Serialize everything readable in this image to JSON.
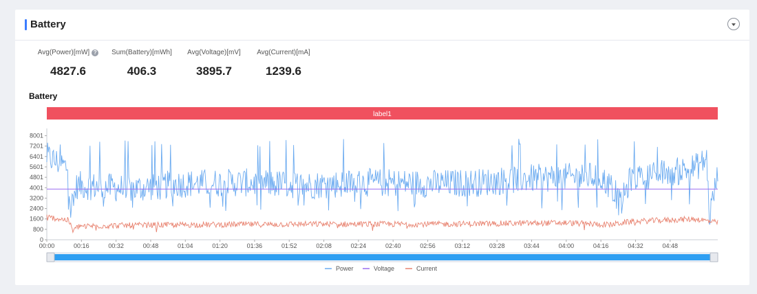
{
  "card": {
    "title": "Battery"
  },
  "metrics": [
    {
      "label": "Avg(Power)[mW]",
      "value": "4827.6",
      "has_help": true
    },
    {
      "label": "Sum(Battery)[mWh]",
      "value": "406.3"
    },
    {
      "label": "Avg(Voltage)[mV]",
      "value": "3895.7"
    },
    {
      "label": "Avg(Current)[mA]",
      "value": "1239.6"
    }
  ],
  "chart_data": {
    "type": "line",
    "title": "Battery",
    "band_label": "label1",
    "band_color": "#f0515f",
    "x_ticks": [
      "00:00",
      "00:16",
      "00:32",
      "00:48",
      "01:04",
      "01:20",
      "01:36",
      "01:52",
      "02:08",
      "02:24",
      "02:40",
      "02:56",
      "03:12",
      "03:28",
      "03:44",
      "04:00",
      "04:16",
      "04:32",
      "04:48"
    ],
    "y_ticks": [
      0,
      800,
      1600,
      2400,
      3200,
      4001,
      4801,
      5601,
      6401,
      7201,
      8001
    ],
    "ylim": [
      0,
      8400
    ],
    "x_range_minutes": [
      0,
      310
    ],
    "series": [
      {
        "name": "Power",
        "color": "#6aaaf0",
        "keypoints": [
          [
            0,
            6400
          ],
          [
            10,
            5500
          ],
          [
            11,
            2300
          ],
          [
            14,
            4200
          ],
          [
            40,
            3900
          ],
          [
            60,
            4300
          ],
          [
            90,
            4400
          ],
          [
            120,
            4200
          ],
          [
            150,
            4400
          ],
          [
            180,
            4300
          ],
          [
            200,
            4400
          ],
          [
            220,
            4700
          ],
          [
            240,
            4800
          ],
          [
            255,
            4900
          ],
          [
            262,
            3900
          ],
          [
            265,
            2600
          ],
          [
            270,
            4800
          ],
          [
            290,
            5200
          ],
          [
            300,
            5600
          ],
          [
            305,
            6200
          ],
          [
            306,
            1700
          ],
          [
            310,
            5000
          ]
        ],
        "spike_level": 8001,
        "dip_level": 2200
      },
      {
        "name": "Voltage",
        "color": "#9a6cf0",
        "value": 3895.7
      },
      {
        "name": "Current",
        "color": "#e8826f",
        "keypoints": [
          [
            0,
            1750
          ],
          [
            10,
            1500
          ],
          [
            12,
            700
          ],
          [
            15,
            1050
          ],
          [
            60,
            1150
          ],
          [
            120,
            1200
          ],
          [
            180,
            1200
          ],
          [
            240,
            1300
          ],
          [
            260,
            1150
          ],
          [
            270,
            1400
          ],
          [
            300,
            1600
          ],
          [
            310,
            1300
          ]
        ]
      }
    ],
    "grid": false,
    "legend": "bottom-center",
    "has_zoom_slider": true
  }
}
